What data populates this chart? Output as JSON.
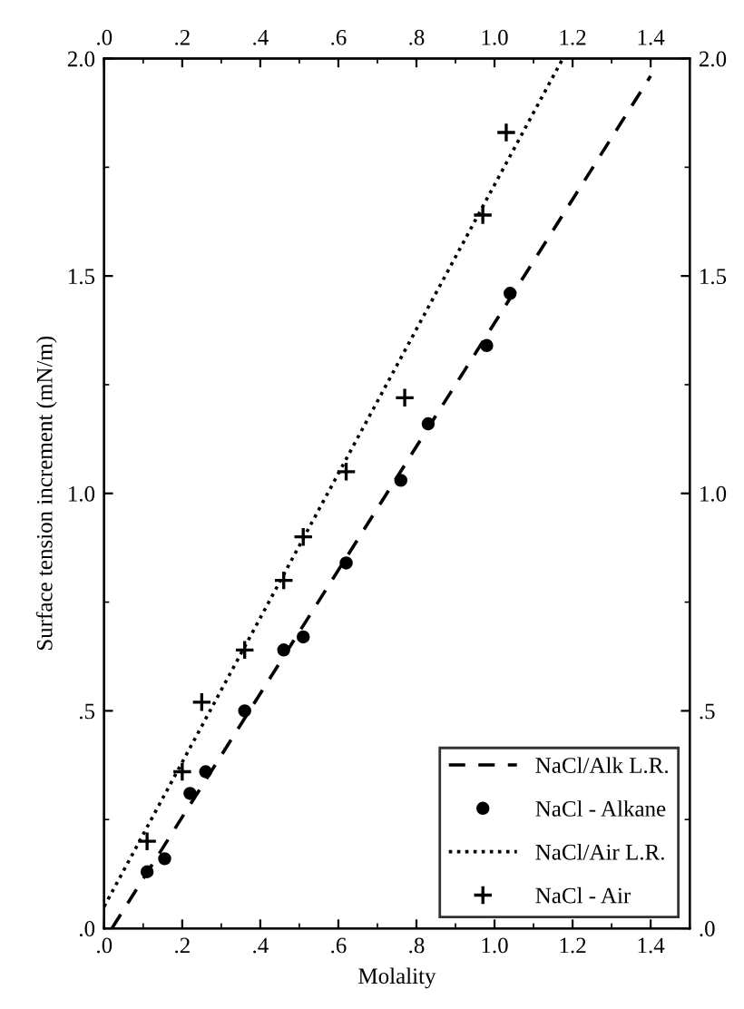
{
  "chart_data": {
    "type": "scatter",
    "xlabel": "Molality",
    "ylabel": "Surface tension increment (mN/m)",
    "xlim": [
      0,
      1.5
    ],
    "ylim": [
      0,
      2.0
    ],
    "xticks": [
      {
        "value": 0,
        "label": ".0"
      },
      {
        "value": 0.2,
        "label": ".2"
      },
      {
        "value": 0.4,
        "label": ".4"
      },
      {
        "value": 0.6,
        "label": ".6"
      },
      {
        "value": 0.8,
        "label": ".8"
      },
      {
        "value": 1.0,
        "label": "1.0"
      },
      {
        "value": 1.2,
        "label": "1.2"
      },
      {
        "value": 1.4,
        "label": "1.4"
      }
    ],
    "yticks": [
      {
        "value": 0,
        "label": ".0"
      },
      {
        "value": 0.5,
        "label": ".5"
      },
      {
        "value": 1.0,
        "label": "1.0"
      },
      {
        "value": 1.5,
        "label": "1.5"
      },
      {
        "value": 2.0,
        "label": "2.0"
      }
    ],
    "x2lim": [
      0,
      1.5
    ],
    "x2ticks": [
      {
        "value": 0,
        "label": ".0"
      },
      {
        "value": 0.2,
        "label": ".2"
      },
      {
        "value": 0.4,
        "label": ".4"
      },
      {
        "value": 0.6,
        "label": ".6"
      },
      {
        "value": 0.8,
        "label": ".8"
      },
      {
        "value": 1.0,
        "label": "1.0"
      },
      {
        "value": 1.2,
        "label": "1.2"
      },
      {
        "value": 1.4,
        "label": "1.4"
      }
    ],
    "y2lim": [
      0,
      2.0
    ],
    "y2ticks": [
      {
        "value": 0,
        "label": ".0"
      },
      {
        "value": 0.5,
        "label": ".5"
      },
      {
        "value": 1.0,
        "label": "1.0"
      },
      {
        "value": 1.5,
        "label": "1.5"
      },
      {
        "value": 2.0,
        "label": "2.0"
      }
    ],
    "grid": false,
    "legend": "bottom right",
    "series": [
      {
        "name": "NaCl/Alk L.R.",
        "type": "line",
        "line_style": "dashed",
        "marker": "none",
        "color": "#000000",
        "x": [
          0.02,
          1.4
        ],
        "values": [
          0,
          1.96
        ]
      },
      {
        "name": "NaCl - Alkane",
        "marker": "circle",
        "color": "#000000",
        "x": [
          0.11,
          0.155,
          0.22,
          0.26,
          0.36,
          0.46,
          0.51,
          0.62,
          0.76,
          0.83,
          0.98,
          1.04
        ],
        "values": [
          0.13,
          0.16,
          0.31,
          0.36,
          0.5,
          0.64,
          0.67,
          0.84,
          1.03,
          1.16,
          1.34,
          1.46
        ]
      },
      {
        "name": "NaCl/Air L.R.",
        "type": "line",
        "line_style": "dotted",
        "marker": "none",
        "color": "#000000",
        "x": [
          0,
          1.175
        ],
        "values": [
          0.05,
          2.0
        ]
      },
      {
        "name": "NaCl - Air",
        "marker": "cross",
        "color": "#000000",
        "x": [
          0.11,
          0.2,
          0.25,
          0.36,
          0.46,
          0.51,
          0.62,
          0.77,
          0.97,
          1.03
        ],
        "values": [
          0.2,
          0.36,
          0.52,
          0.64,
          0.8,
          0.9,
          1.05,
          1.22,
          1.64,
          1.83
        ]
      }
    ]
  }
}
